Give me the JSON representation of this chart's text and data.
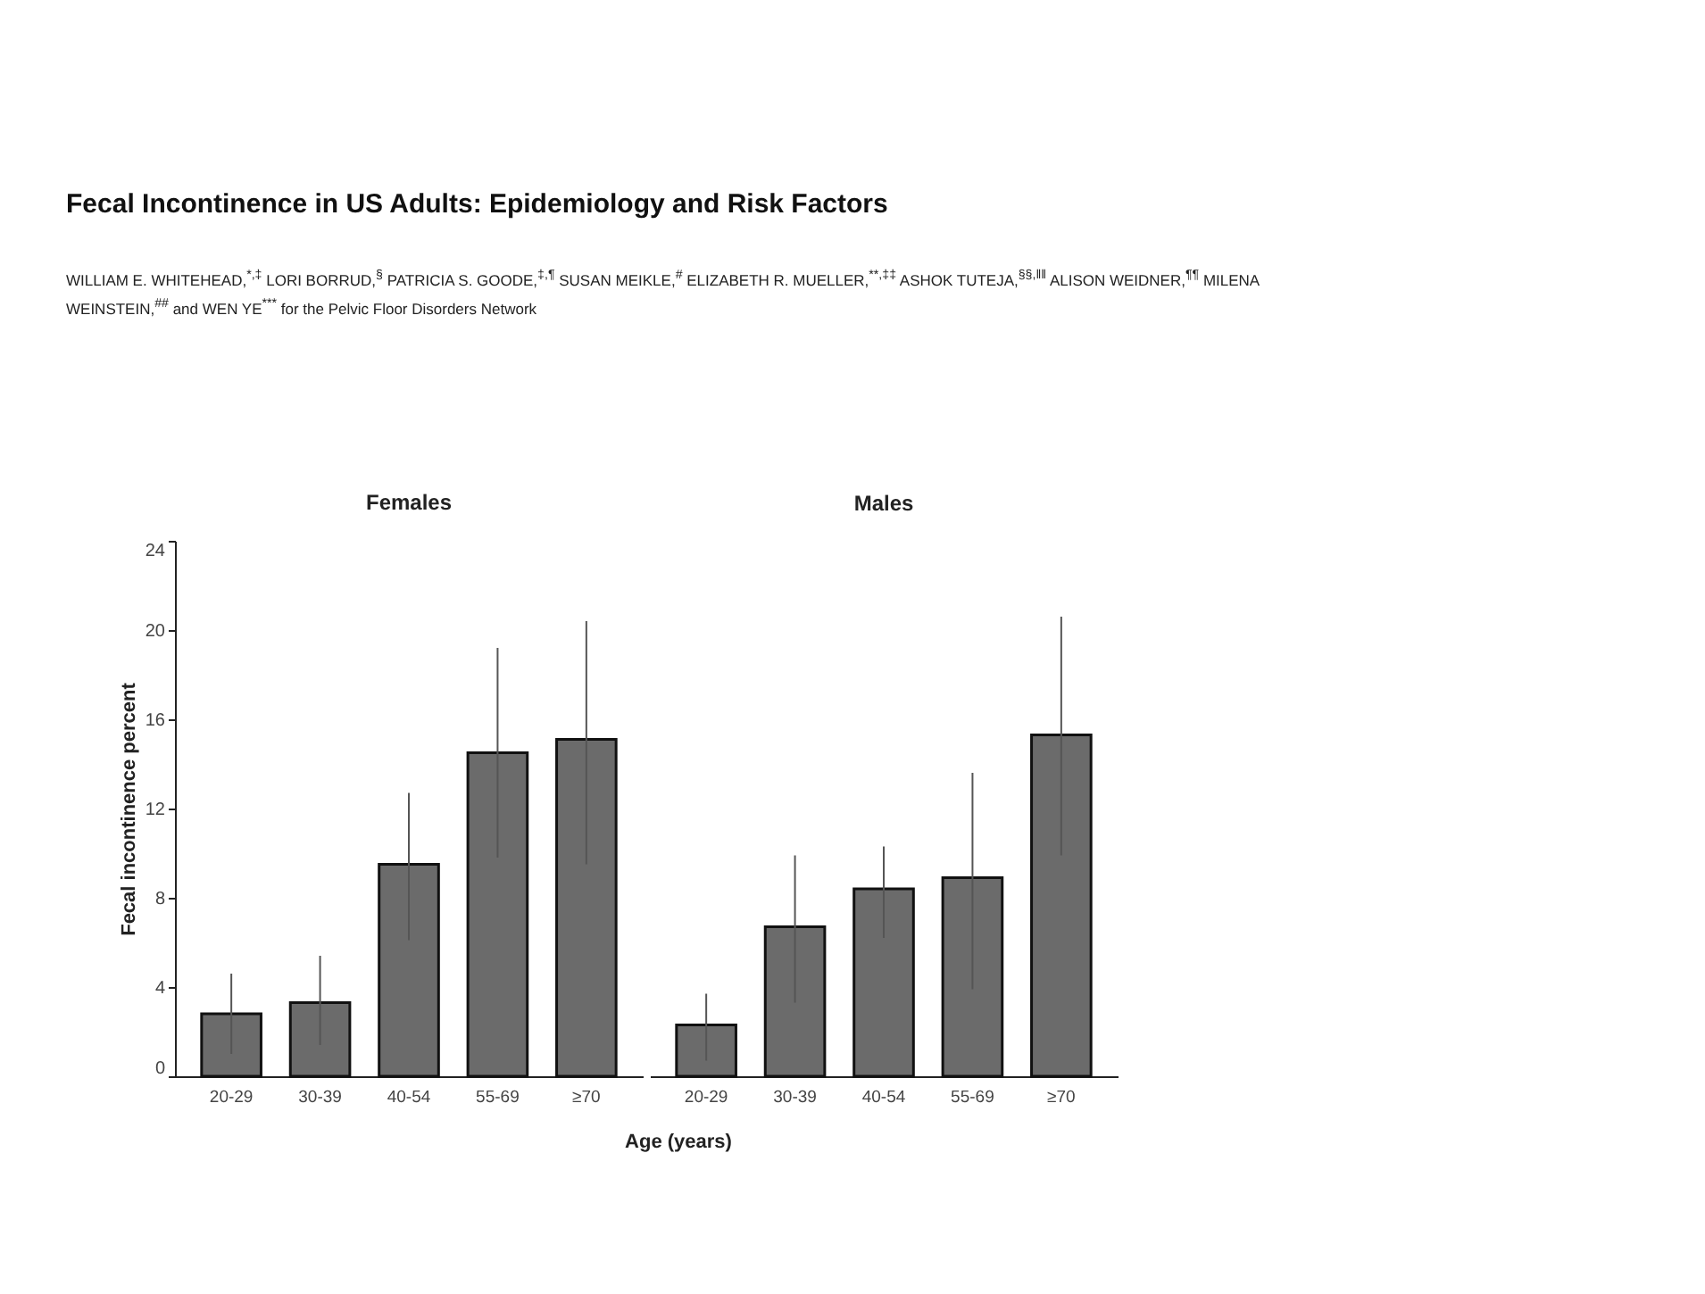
{
  "chart_data": [
    {
      "type": "bar",
      "title": "Females",
      "ylabel": "Fecal incontinence percent",
      "xlabel": "Age (years)",
      "annotations": [
        "Fecal Incontinence in US Adults: Epidemiology and Risk Factors",
        "WILLIAM E. WHITEHEAD,$^{*,‡}$ LORI BORRUD,$^{§}$ PATRICIA S. GOODE,$^{‡,¶}$ SUSAN MEIKLE,$^{#}$ ELIZABETH R. MUELLER,$^{**,‡‡}$ ASHOK TUTEJA,$^{§§,‖‖}$ ALISON WEIDNER,$^{¶¶}$ MILENA WEINSTEIN,$^{##}$ and WEN YE$^{***}$ for the Pelvic Floor Disorders Network"
      ],
      "categories": [
        "20-29",
        "30-39",
        "40-54",
        "55-69",
        "≥70"
      ],
      "values": [
        2.8,
        3.3,
        9.5,
        14.5,
        15.1
      ],
      "errors": [
        [
          1.0,
          4.6
        ],
        [
          1.4,
          5.4
        ],
        [
          6.1,
          12.7
        ],
        [
          9.8,
          19.2
        ],
        [
          9.5,
          20.4
        ]
      ],
      "color": "#6b6b6b",
      "ylim": [
        0,
        24
      ],
      "yticks": [
        0,
        4,
        8,
        12,
        16,
        20,
        24
      ]
    },
    {
      "type": "bar",
      "title": "Males",
      "categories": [
        "20-29",
        "30-39",
        "40-54",
        "55-69",
        "≥70"
      ],
      "values": [
        2.3,
        6.7,
        8.4,
        8.9,
        15.3
      ],
      "errors": [
        [
          0.7,
          3.7
        ],
        [
          3.3,
          9.9
        ],
        [
          6.2,
          10.3
        ],
        [
          3.9,
          13.6
        ],
        [
          9.9,
          20.6
        ]
      ],
      "color": "#6b6b6b",
      "ylim": [
        0,
        24
      ],
      "yticks": [
        0,
        4,
        8,
        12,
        16,
        20,
        24
      ],
      "tick_labels": "x"
    }
  ]
}
